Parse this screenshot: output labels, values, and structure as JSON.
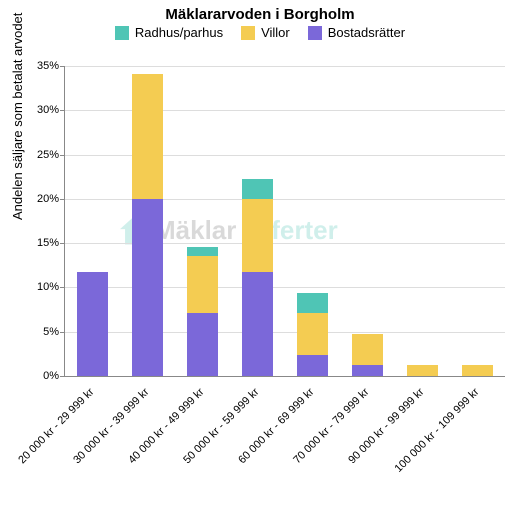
{
  "chart": {
    "type": "stacked-bar",
    "title": "Mäklararvoden i Borgholm",
    "title_fontsize": 15,
    "ylabel": "Andelen säljare som betalat arvodet",
    "label_fontsize": 13,
    "background_color": "#ffffff",
    "grid_color": "#dddddd",
    "axis_color": "#888888",
    "ylim": [
      0,
      35
    ],
    "ytick_step": 5,
    "ytick_suffix": "%",
    "bar_width": 0.55,
    "legend_position": "top",
    "series": [
      {
        "key": "radhus",
        "label": "Radhus/parhus",
        "color": "#4fc5b5"
      },
      {
        "key": "villor",
        "label": "Villor",
        "color": "#f4cc52"
      },
      {
        "key": "bostad",
        "label": "Bostadsrätter",
        "color": "#7b68d9"
      }
    ],
    "categories": [
      "20 000 kr - 29 999 kr",
      "30 000 kr - 39 999 kr",
      "40 000 kr - 49 999 kr",
      "50 000 kr - 59 999 kr",
      "60 000 kr - 69 999 kr",
      "70 000 kr - 79 999 kr",
      "90 000 kr - 99 999 kr",
      "100 000 kr - 109 999 kr"
    ],
    "data": {
      "radhus": [
        0,
        0,
        1.0,
        2.3,
        2.3,
        0,
        0,
        0
      ],
      "villor": [
        0,
        14.1,
        6.5,
        8.2,
        4.7,
        3.5,
        1.2,
        1.2
      ],
      "bostad": [
        11.8,
        20.0,
        7.1,
        11.8,
        2.4,
        1.2,
        0,
        0
      ]
    },
    "watermark": {
      "text1": "Mäklar",
      "text2": "Offerter",
      "color1": "#555555",
      "color2": "#2fb9a7"
    }
  }
}
